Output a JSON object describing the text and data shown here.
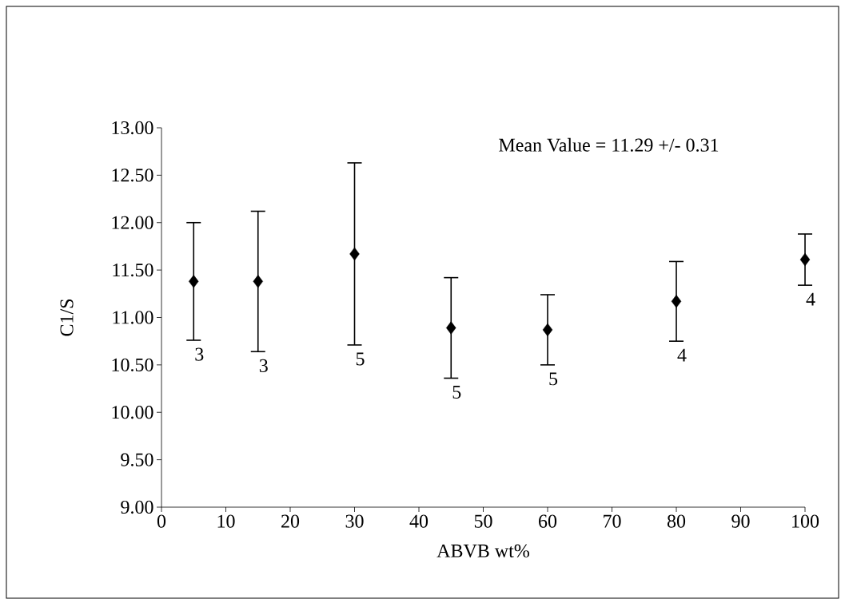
{
  "chart_data": {
    "type": "scatter",
    "xlabel": "ABVB wt%",
    "ylabel": "C1/S",
    "x": [
      5,
      15,
      30,
      45,
      60,
      80,
      100
    ],
    "values": [
      11.38,
      11.38,
      11.67,
      10.89,
      10.87,
      11.17,
      11.61
    ],
    "errors": [
      0.62,
      0.74,
      0.96,
      0.53,
      0.37,
      0.42,
      0.27
    ],
    "color": "#000000",
    "marker": "diamond",
    "xlim": [
      0,
      100
    ],
    "xticks": [
      0,
      10,
      20,
      30,
      40,
      50,
      60,
      70,
      80,
      90,
      100
    ],
    "ylim": [
      9,
      13
    ],
    "yticks": [
      {
        "value": 9,
        "label": "9.00"
      },
      {
        "value": 9.5,
        "label": "9.50"
      },
      {
        "value": 10,
        "label": "10.00"
      },
      {
        "value": 10.5,
        "label": "10.50"
      },
      {
        "value": 11,
        "label": "11.00"
      },
      {
        "value": 11.5,
        "label": "11.50"
      },
      {
        "value": 12,
        "label": "12.00"
      },
      {
        "value": 12.5,
        "label": "12.50"
      },
      {
        "value": 13,
        "label": "13.00"
      }
    ],
    "annotations": [
      "Mean Value = 11.29 +/- 0.31",
      "3",
      "3",
      "5",
      "5",
      "5",
      "4",
      "4"
    ]
  }
}
